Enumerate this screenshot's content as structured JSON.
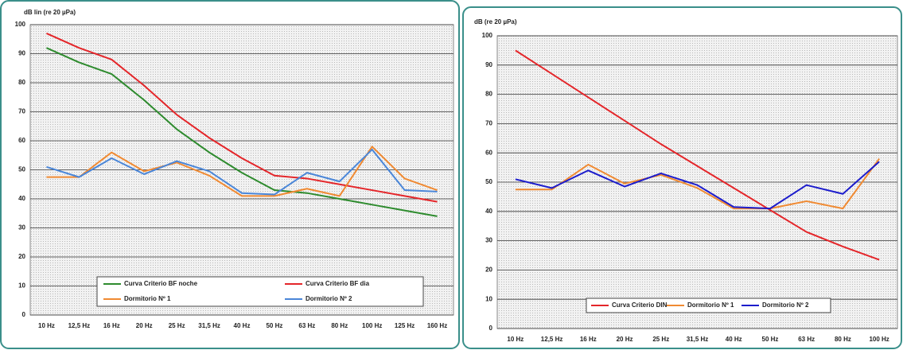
{
  "chart_data": [
    {
      "type": "line",
      "y_label": "dB lin (re 20 µPa)",
      "categories": [
        "10 Hz",
        "12,5 Hz",
        "16 Hz",
        "20 Hz",
        "25 Hz",
        "31,5 Hz",
        "40 Hz",
        "50 Hz",
        "63 Hz",
        "80 Hz",
        "100 Hz",
        "125 Hz",
        "160 Hz"
      ],
      "series": [
        {
          "name": "Curva Criterio BF noche",
          "color": "#2e8b2e",
          "values": [
            92,
            87,
            83,
            74,
            64,
            56,
            49,
            43,
            42,
            40,
            38,
            36,
            34
          ]
        },
        {
          "name": "Curva Criterio BF dia",
          "color": "#e4262a",
          "values": [
            97,
            92,
            88,
            79,
            69,
            61,
            54,
            48,
            47,
            45,
            43,
            41,
            39
          ]
        },
        {
          "name": "Dormitorio Nº 1",
          "color": "#f08a32",
          "values": [
            47.5,
            47.5,
            56,
            49.5,
            52.5,
            48,
            41,
            41,
            43.5,
            41,
            58,
            47,
            43
          ]
        },
        {
          "name": "Dormitorio Nº 2",
          "color": "#4a86d8",
          "values": [
            51,
            47.5,
            54,
            48.5,
            53,
            49.5,
            42,
            41.5,
            49,
            46,
            57,
            43,
            42.5
          ]
        }
      ],
      "ylim": [
        0,
        100
      ],
      "yticks": [
        0,
        10,
        20,
        30,
        40,
        50,
        60,
        70,
        80,
        90,
        100
      ],
      "grid": true
    },
    {
      "type": "line",
      "y_label": "dB (re 20 µPa)",
      "categories": [
        "10 Hz",
        "12,5 Hz",
        "16 Hz",
        "20 Hz",
        "25 Hz",
        "31,5 Hz",
        "40 Hz",
        "50 Hz",
        "63 Hz",
        "80 Hz",
        "100 Hz"
      ],
      "series": [
        {
          "name": "Curva Criterio DIN",
          "color": "#e4262a",
          "values": [
            95,
            87,
            79,
            71,
            63,
            55.5,
            48,
            40.5,
            33,
            28,
            23.5
          ]
        },
        {
          "name": "Dormitorio Nº 1",
          "color": "#f08a32",
          "values": [
            47.5,
            47.5,
            56,
            49.5,
            52.5,
            48,
            41,
            41,
            43.5,
            41,
            58
          ]
        },
        {
          "name": "Dormitorio Nº 2",
          "color": "#1c1ccc",
          "values": [
            51,
            48,
            54,
            48.5,
            53,
            49,
            41.5,
            41,
            49,
            46,
            57
          ]
        }
      ],
      "ylim": [
        0,
        100
      ],
      "yticks": [
        0,
        10,
        20,
        30,
        40,
        50,
        60,
        70,
        80,
        90,
        100
      ],
      "grid": true
    }
  ]
}
